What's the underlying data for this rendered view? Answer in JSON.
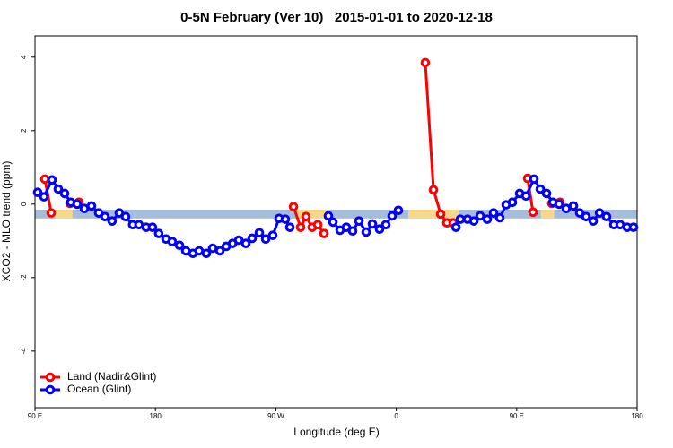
{
  "chart_data": {
    "type": "line",
    "title": "0-5N February (Ver 10)   2015-01-01 to 2020-12-18",
    "x_label": "Longitude (deg E)",
    "y_label": "XCO2 - MLO trend (ppm)",
    "xlim": [
      90,
      540
    ],
    "xticks": [
      {
        "value": 90,
        "label": "90 E"
      },
      {
        "value": 180,
        "label": "180"
      },
      {
        "value": 270,
        "label": "90 W"
      },
      {
        "value": 360,
        "label": "0"
      },
      {
        "value": 450,
        "label": "90 E"
      },
      {
        "value": 540,
        "label": "180"
      }
    ],
    "ylim": [
      -5.54,
      4.58
    ],
    "yticks": [
      4,
      2,
      0,
      -2,
      -4
    ],
    "legend": "bottomleft",
    "surface_band": {
      "ylim": [
        -0.39,
        -0.15
      ],
      "ocean_color": "#a7bcd9",
      "land_color": "#f7d88a",
      "land_spans": [
        [
          105,
          118
        ],
        [
          285,
          308
        ],
        [
          369,
          407
        ],
        [
          468,
          478
        ]
      ]
    },
    "series": [
      {
        "name": "Land (Nadir&Glint)",
        "color": "#ff0000",
        "x": [
          97.4,
          102.1,
          null,
          116.2,
          122.9,
          null,
          283.2,
          288.5,
          292.5,
          297.2,
          301.3,
          306.0,
          null,
          381.7,
          387.8,
          393.2,
          397.8,
          402.5,
          null,
          458.2,
          462.2,
          null,
          476.3,
          482.4
        ],
        "values": [
          0.68,
          -0.24,
          null,
          0.02,
          0.05,
          null,
          -0.07,
          -0.63,
          -0.34,
          -0.63,
          -0.56,
          -0.8,
          null,
          3.85,
          0.39,
          -0.27,
          -0.51,
          -0.51,
          null,
          0.7,
          -0.22,
          null,
          0.02,
          0.05
        ]
      },
      {
        "name": "Ocean (Glint)",
        "color": "#0000ff",
        "x": [
          92.0,
          96.7,
          102.7,
          107.4,
          112.1,
          116.8,
          121.5,
          126.9,
          132.2,
          137.6,
          142.3,
          147.6,
          153.0,
          157.7,
          163.0,
          167.7,
          173.1,
          177.8,
          182.5,
          187.9,
          192.6,
          198.0,
          202.7,
          208.0,
          212.7,
          218.1,
          222.8,
          228.2,
          232.9,
          237.6,
          242.3,
          247.6,
          252.3,
          257.7,
          262.4,
          267.7,
          272.4,
          277.1,
          280.5,
          null,
          309.3,
          312.7,
          318.0,
          322.7,
          327.4,
          332.1,
          337.5,
          342.2,
          347.5,
          352.2,
          356.9,
          361.6,
          null,
          404.6,
          407.9,
          413.3,
          418.0,
          422.7,
          428.0,
          432.7,
          437.4,
          442.1,
          446.8,
          452.2,
          456.9,
          462.9,
          467.6,
          472.3,
          477.0,
          481.7,
          487.0,
          492.4,
          497.1,
          501.8,
          507.2,
          511.9,
          517.2,
          522.6,
          527.3,
          532.6,
          537.3
        ],
        "values": [
          0.32,
          0.2,
          0.66,
          0.41,
          0.29,
          0.05,
          0.0,
          -0.12,
          -0.05,
          -0.24,
          -0.34,
          -0.46,
          -0.24,
          -0.34,
          -0.56,
          -0.56,
          -0.63,
          -0.63,
          -0.8,
          -0.95,
          -1.02,
          -1.12,
          -1.27,
          -1.34,
          -1.27,
          -1.34,
          -1.2,
          -1.27,
          -1.15,
          -1.07,
          -0.98,
          -1.07,
          -0.93,
          -0.78,
          -0.95,
          -0.85,
          -0.39,
          -0.41,
          -0.63,
          null,
          -0.32,
          -0.49,
          -0.71,
          -0.63,
          -0.73,
          -0.46,
          -0.76,
          -0.54,
          -0.68,
          -0.56,
          -0.32,
          -0.17,
          null,
          -0.63,
          -0.41,
          -0.41,
          -0.46,
          -0.32,
          -0.41,
          -0.24,
          -0.37,
          -0.02,
          0.05,
          0.29,
          0.22,
          0.68,
          0.41,
          0.29,
          0.05,
          0.0,
          -0.12,
          -0.05,
          -0.24,
          -0.34,
          -0.46,
          -0.24,
          -0.34,
          -0.56,
          -0.56,
          -0.63,
          -0.63
        ]
      }
    ]
  }
}
